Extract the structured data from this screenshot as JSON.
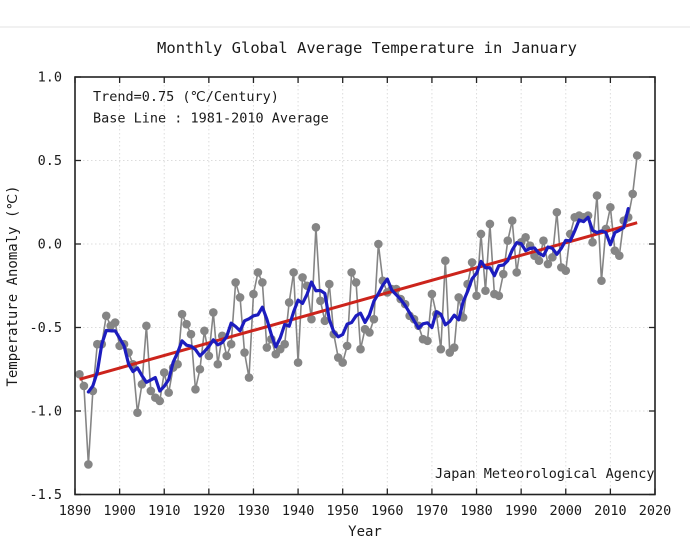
{
  "title": "Monthly Global Average Temperature in January",
  "annotations": {
    "trend": "Trend=0.75 (℃/Century)",
    "baseline": "Base Line : 1981-2010 Average",
    "agency": "Japan Meteorological Agency"
  },
  "axes": {
    "x": {
      "label": "Year",
      "ticks": [
        "1890",
        "1900",
        "1910",
        "1920",
        "1930",
        "1940",
        "1950",
        "1960",
        "1970",
        "1980",
        "1990",
        "2000",
        "2010",
        "2020"
      ]
    },
    "y": {
      "label": "Temperature Anomaly (℃)",
      "ticks": [
        "1.0",
        "0.5",
        "0.0",
        "-0.5",
        "-1.0",
        "-1.5"
      ]
    }
  },
  "chart_data": {
    "type": "line",
    "title": "Monthly Global Average Temperature in January",
    "xlabel": "Year",
    "ylabel": "Temperature Anomaly (℃)",
    "xlim": [
      1890,
      2020
    ],
    "ylim": [
      -1.5,
      1.0
    ],
    "grid": "dotted at every labeled tick",
    "legend": "none",
    "years": {
      "start": 1891,
      "end": 2016,
      "step": 1
    },
    "series": [
      {
        "name": "January global average temperature anomaly",
        "style": "gray markers connected by thin gray line",
        "color": "#858585",
        "values": [
          -0.78,
          -0.85,
          -1.32,
          -0.88,
          -0.6,
          -0.6,
          -0.43,
          -0.49,
          -0.47,
          -0.61,
          -0.6,
          -0.65,
          -0.72,
          -1.01,
          -0.84,
          -0.49,
          -0.88,
          -0.92,
          -0.94,
          -0.77,
          -0.89,
          -0.74,
          -0.72,
          -0.42,
          -0.48,
          -0.54,
          -0.87,
          -0.75,
          -0.52,
          -0.67,
          -0.41,
          -0.72,
          -0.55,
          -0.67,
          -0.6,
          -0.23,
          -0.32,
          -0.65,
          -0.8,
          -0.3,
          -0.17,
          -0.23,
          -0.62,
          -0.57,
          -0.66,
          -0.63,
          -0.6,
          -0.35,
          -0.17,
          -0.71,
          -0.2,
          -0.25,
          -0.45,
          0.1,
          -0.34,
          -0.46,
          -0.24,
          -0.54,
          -0.68,
          -0.71,
          -0.61,
          -0.17,
          -0.23,
          -0.63,
          -0.51,
          -0.53,
          -0.45,
          0.0,
          -0.22,
          -0.29,
          -0.27,
          -0.27,
          -0.33,
          -0.36,
          -0.43,
          -0.45,
          -0.49,
          -0.57,
          -0.58,
          -0.3,
          -0.42,
          -0.63,
          -0.1,
          -0.65,
          -0.62,
          -0.32,
          -0.44,
          -0.24,
          -0.11,
          -0.31,
          0.06,
          -0.28,
          0.12,
          -0.3,
          -0.31,
          -0.18,
          0.02,
          0.14,
          -0.17,
          0.01,
          0.04,
          -0.01,
          -0.07,
          -0.1,
          0.02,
          -0.12,
          -0.08,
          0.19,
          -0.14,
          -0.16,
          0.06,
          0.16,
          0.17,
          0.16,
          0.17,
          0.01,
          0.29,
          -0.22,
          0.09,
          0.22,
          -0.04,
          -0.07,
          0.14,
          0.16,
          0.3,
          0.53
        ]
      },
      {
        "name": "Five-year running mean",
        "style": "thick blue line",
        "color": "#1c1cbe",
        "derived": "centered_5yr_mean_of_series_0"
      },
      {
        "name": "Linear trend 0.75 ℃/century",
        "style": "thick red straight line",
        "color": "#cc241c",
        "trend": {
          "from_year": 1891,
          "to_year": 2016,
          "value_at_1891": -0.81,
          "slope_c_per_century": 0.75
        }
      }
    ]
  }
}
